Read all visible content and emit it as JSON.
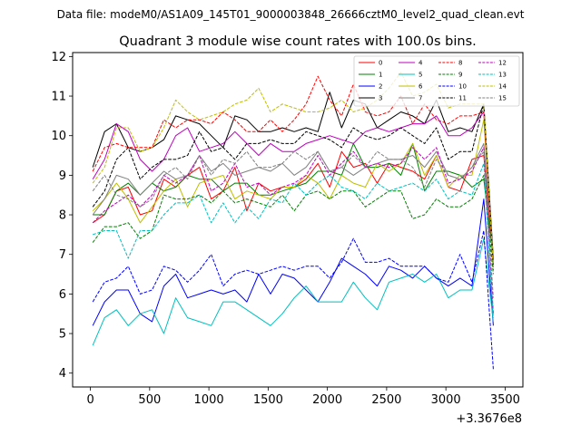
{
  "header": {
    "suptitle": "Data file: modeM0/AS1A09_145T01_9000003848_26666cztM0_level2_quad_clean.evt"
  },
  "chart_data": {
    "type": "line",
    "title": "Quadrant 3 module wise count rates with 100.0s bins.",
    "xlabel": "",
    "ylabel": "",
    "x_offset_label": "+3.3676e8",
    "xlim": [
      -150,
      3650
    ],
    "ylim": [
      3.65,
      12.1
    ],
    "xticks": [
      0,
      500,
      1000,
      1500,
      2000,
      2500,
      3000,
      3500
    ],
    "yticks": [
      4,
      5,
      6,
      7,
      8,
      9,
      10,
      11,
      12
    ],
    "legend_position": "top-right",
    "x": [
      20,
      120,
      220,
      320,
      420,
      520,
      620,
      720,
      820,
      920,
      1020,
      1120,
      1220,
      1320,
      1420,
      1520,
      1620,
      1720,
      1820,
      1920,
      2020,
      2120,
      2220,
      2320,
      2420,
      2520,
      2620,
      2720,
      2820,
      2920,
      3020,
      3120,
      3220,
      3320,
      3400
    ],
    "series": [
      {
        "name": "0",
        "color": "#ff0000",
        "dash": "solid",
        "values": [
          7.8,
          8.0,
          8.6,
          8.7,
          8.0,
          8.1,
          8.9,
          8.7,
          9.0,
          9.2,
          8.4,
          8.6,
          9.2,
          8.1,
          8.8,
          8.6,
          8.7,
          8.7,
          8.9,
          9.3,
          8.7,
          9.6,
          9.2,
          9.3,
          8.8,
          9.3,
          9.2,
          9.1,
          8.9,
          9.5,
          8.7,
          8.6,
          9.4,
          9.5,
          6.8
        ]
      },
      {
        "name": "1",
        "color": "#008000",
        "dash": "solid",
        "values": [
          8.0,
          8.0,
          8.6,
          8.8,
          8.5,
          8.8,
          8.6,
          8.7,
          9.0,
          8.9,
          8.9,
          8.6,
          8.8,
          8.8,
          8.5,
          8.5,
          8.6,
          8.7,
          8.8,
          9.1,
          9.1,
          9.0,
          9.8,
          9.2,
          9.2,
          9.3,
          9.0,
          9.8,
          8.6,
          9.1,
          9.1,
          9.0,
          8.7,
          8.9,
          6.9
        ]
      },
      {
        "name": "2",
        "color": "#0000ff",
        "dash": "solid",
        "values": [
          5.2,
          5.8,
          6.1,
          6.1,
          5.5,
          5.3,
          6.2,
          6.5,
          5.9,
          6.0,
          6.1,
          6.0,
          6.1,
          5.8,
          6.5,
          6.0,
          6.5,
          6.4,
          6.1,
          5.8,
          6.3,
          6.9,
          6.7,
          6.5,
          6.2,
          6.7,
          6.6,
          6.4,
          6.7,
          6.4,
          6.2,
          6.4,
          6.2,
          8.4,
          5.2
        ]
      },
      {
        "name": "3",
        "color": "#000000",
        "dash": "solid",
        "values": [
          9.2,
          10.1,
          10.3,
          9.7,
          9.6,
          9.7,
          9.9,
          10.5,
          10.4,
          10.3,
          10.0,
          9.7,
          10.5,
          10.4,
          10.1,
          10.1,
          10.2,
          10.1,
          10.2,
          10.1,
          11.1,
          10.2,
          10.9,
          10.8,
          10.2,
          10.4,
          10.6,
          10.5,
          10.3,
          10.9,
          10.1,
          10.2,
          10.1,
          10.8,
          6.9
        ]
      },
      {
        "name": "4",
        "color": "#bf00bf",
        "dash": "solid",
        "values": [
          8.9,
          9.4,
          10.3,
          10.1,
          9.4,
          9.1,
          9.4,
          10.0,
          10.2,
          9.6,
          9.7,
          9.8,
          10.1,
          9.8,
          9.5,
          9.8,
          9.6,
          9.6,
          9.8,
          9.9,
          10.0,
          9.9,
          9.8,
          10.1,
          10.2,
          10.1,
          10.2,
          10.3,
          10.3,
          10.5,
          10.0,
          10.0,
          10.2,
          10.6,
          6.8
        ]
      },
      {
        "name": "5",
        "color": "#00bfbf",
        "dash": "solid",
        "values": [
          4.7,
          5.4,
          5.6,
          5.2,
          5.5,
          5.6,
          5.0,
          5.9,
          5.4,
          5.3,
          5.2,
          5.8,
          5.8,
          5.6,
          5.4,
          5.2,
          5.5,
          5.9,
          6.2,
          5.8,
          5.8,
          5.8,
          6.3,
          5.9,
          5.6,
          6.3,
          6.4,
          6.5,
          6.3,
          6.5,
          5.9,
          6.1,
          6.1,
          7.4,
          5.3
        ]
      },
      {
        "name": "6",
        "color": "#bfbf00",
        "dash": "solid",
        "values": [
          8.1,
          8.4,
          8.8,
          8.4,
          7.8,
          8.2,
          8.6,
          8.9,
          8.2,
          8.8,
          8.9,
          9.0,
          8.4,
          8.6,
          8.5,
          8.4,
          8.7,
          8.7,
          9.0,
          8.8,
          8.4,
          9.0,
          8.8,
          8.7,
          9.3,
          9.1,
          9.3,
          9.8,
          9.0,
          9.5,
          8.7,
          9.0,
          9.0,
          10.4,
          6.8
        ]
      },
      {
        "name": "7",
        "color": "#808080",
        "dash": "solid",
        "values": [
          8.0,
          8.4,
          9.0,
          8.9,
          8.5,
          8.8,
          9.1,
          8.9,
          9.0,
          9.5,
          9.1,
          9.3,
          9.0,
          9.1,
          9.2,
          9.1,
          9.3,
          9.0,
          9.2,
          9.6,
          9.1,
          9.2,
          9.0,
          9.2,
          9.3,
          9.4,
          9.4,
          9.5,
          9.2,
          9.6,
          9.0,
          8.9,
          9.2,
          9.8,
          6.9
        ]
      },
      {
        "name": "8",
        "color": "#ff0000",
        "dash": "dashed",
        "values": [
          9.1,
          9.7,
          9.8,
          9.7,
          9.7,
          9.7,
          10.4,
          10.2,
          10.4,
          10.4,
          10.3,
          10.6,
          10.4,
          10.1,
          10.1,
          10.4,
          10.1,
          10.4,
          10.8,
          11.5,
          10.9,
          10.5,
          11.3,
          10.6,
          10.5,
          10.6,
          11.0,
          10.3,
          10.8,
          10.4,
          10.3,
          10.5,
          10.5,
          10.6,
          6.6
        ]
      },
      {
        "name": "9",
        "color": "#008000",
        "dash": "dashed",
        "values": [
          7.3,
          7.7,
          7.7,
          7.8,
          7.4,
          7.6,
          8.5,
          8.4,
          8.4,
          8.5,
          8.3,
          8.6,
          8.3,
          8.4,
          8.3,
          8.2,
          8.5,
          8.1,
          8.5,
          8.6,
          8.4,
          8.6,
          8.6,
          8.2,
          8.4,
          8.6,
          8.6,
          7.9,
          8.0,
          8.4,
          8.2,
          8.2,
          8.4,
          9.0,
          6.5
        ]
      },
      {
        "name": "10",
        "color": "#0000ff",
        "dash": "dashed",
        "values": [
          5.8,
          6.3,
          6.4,
          6.7,
          6.0,
          6.1,
          6.7,
          6.6,
          6.3,
          6.6,
          7.0,
          6.2,
          6.5,
          6.6,
          6.5,
          6.6,
          6.7,
          6.6,
          6.7,
          6.7,
          6.4,
          6.8,
          7.4,
          6.8,
          6.8,
          6.9,
          6.7,
          6.7,
          6.7,
          6.4,
          6.3,
          7.0,
          6.3,
          7.6,
          4.1
        ]
      },
      {
        "name": "11",
        "color": "#000000",
        "dash": "dashed",
        "values": [
          8.2,
          8.6,
          9.4,
          9.7,
          8.9,
          9.2,
          9.4,
          9.4,
          9.5,
          10.1,
          9.6,
          9.7,
          9.4,
          9.8,
          9.8,
          9.9,
          9.8,
          9.8,
          10.1,
          10.0,
          9.9,
          9.7,
          10.2,
          10.0,
          9.9,
          10.0,
          10.2,
          10.0,
          9.8,
          10.2,
          9.4,
          9.6,
          9.6,
          10.8,
          6.7
        ]
      },
      {
        "name": "12",
        "color": "#bf00bf",
        "dash": "dashed",
        "values": [
          7.8,
          8.1,
          8.3,
          8.5,
          8.2,
          8.5,
          9.0,
          8.8,
          9.0,
          9.5,
          8.6,
          8.8,
          9.3,
          8.7,
          8.8,
          8.5,
          8.7,
          8.8,
          9.0,
          9.5,
          9.0,
          9.3,
          9.6,
          9.2,
          9.3,
          9.2,
          9.3,
          9.7,
          9.4,
          9.7,
          8.8,
          8.9,
          9.1,
          9.7,
          5.5
        ]
      },
      {
        "name": "13",
        "color": "#00bfbf",
        "dash": "dashed",
        "values": [
          7.5,
          7.6,
          7.6,
          6.9,
          7.6,
          7.6,
          8.0,
          8.3,
          8.3,
          8.5,
          7.8,
          8.3,
          7.8,
          8.2,
          7.9,
          8.4,
          8.3,
          8.8,
          8.5,
          8.8,
          9.0,
          8.7,
          8.6,
          8.4,
          8.8,
          8.6,
          8.7,
          8.8,
          8.6,
          8.9,
          8.4,
          8.6,
          8.5,
          9.3,
          5.4
        ]
      },
      {
        "name": "14",
        "color": "#bfbf00",
        "dash": "dashed",
        "values": [
          8.8,
          9.2,
          10.2,
          10.2,
          9.6,
          9.7,
          10.2,
          10.9,
          10.6,
          10.4,
          10.5,
          10.6,
          10.8,
          10.9,
          11.2,
          10.6,
          10.8,
          10.7,
          10.6,
          10.6,
          10.7,
          10.9,
          10.6,
          10.7,
          10.9,
          11.2,
          11.6,
          11.0,
          11.1,
          11.3,
          10.7,
          10.8,
          10.8,
          10.8,
          6.7
        ]
      },
      {
        "name": "15",
        "color": "#808080",
        "dash": "dashed",
        "values": [
          8.6,
          9.0,
          8.5,
          8.4,
          8.2,
          8.4,
          9.0,
          9.2,
          8.9,
          9.5,
          9.0,
          9.4,
          9.3,
          9.6,
          9.2,
          9.2,
          9.3,
          9.6,
          9.4,
          9.6,
          9.1,
          9.2,
          9.5,
          9.2,
          9.6,
          9.4,
          9.4,
          9.2,
          8.7,
          9.4,
          9.0,
          8.9,
          9.2,
          9.6,
          5.9
        ]
      }
    ]
  }
}
